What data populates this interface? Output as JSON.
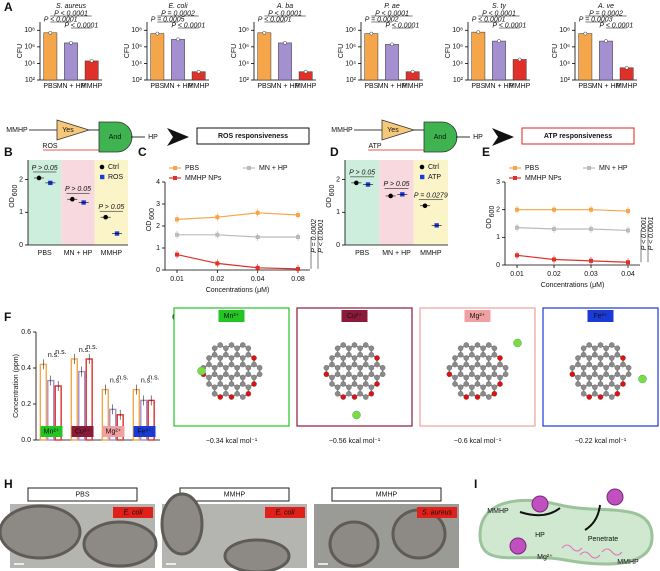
{
  "panel_labels": [
    "A",
    "B",
    "C",
    "D",
    "E",
    "F",
    "G",
    "H",
    "I"
  ],
  "chart_data": [
    {
      "type": "bar",
      "title": "S. aureus",
      "ylabel": "CFU",
      "categories": [
        "PBS",
        "MN + HP",
        "MMHP"
      ],
      "values": [
        50000000,
        3000000,
        20000
      ],
      "colors": [
        "#f5a64a",
        "#a48fd0",
        "#e0302a"
      ],
      "log_scale": true,
      "ylim": [
        100,
        1000000000
      ],
      "yticks": [
        {
          "value": 100,
          "label": "10²"
        },
        {
          "value": 10000,
          "label": "10⁴"
        },
        {
          "value": 1000000,
          "label": "10⁶"
        },
        {
          "value": 100000000,
          "label": "10⁸"
        }
      ],
      "annotations": [
        "P < 0.0001",
        "P < 0.0001",
        "P < 0.0001"
      ]
    },
    {
      "type": "bar",
      "title": "E. coli",
      "ylabel": "CFU",
      "categories": [
        "PBS",
        "MN + HP",
        "MMHP"
      ],
      "values": [
        40000000,
        8000000,
        1000
      ],
      "colors": [
        "#f5a64a",
        "#a48fd0",
        "#e0302a"
      ],
      "log_scale": true,
      "ylim": [
        100,
        1000000000
      ],
      "yticks": [
        {
          "value": 100,
          "label": "10²"
        },
        {
          "value": 10000,
          "label": "10⁴"
        },
        {
          "value": 1000000,
          "label": "10⁶"
        },
        {
          "value": 100000000,
          "label": "10⁸"
        }
      ],
      "annotations": [
        "P = 0.0002",
        "P = 0.0005",
        "P < 0.0001"
      ]
    },
    {
      "type": "bar",
      "title": "A. ba",
      "ylabel": "CFU",
      "categories": [
        "PBS",
        "MN + HP",
        "MMHP"
      ],
      "values": [
        50000000,
        3000000,
        1000
      ],
      "colors": [
        "#f5a64a",
        "#a48fd0",
        "#e0302a"
      ],
      "log_scale": true,
      "ylim": [
        100,
        1000000000
      ],
      "yticks": [
        {
          "value": 100,
          "label": "10²"
        },
        {
          "value": 10000,
          "label": "10⁴"
        },
        {
          "value": 1000000,
          "label": "10⁶"
        },
        {
          "value": 100000000,
          "label": "10⁸"
        }
      ],
      "annotations": [
        "P < 0.0001",
        "P < 0.0001"
      ]
    },
    {
      "type": "bar",
      "title": "P. ae",
      "ylabel": "CFU",
      "categories": [
        "PBS",
        "MN + HP",
        "MMHP"
      ],
      "values": [
        40000000,
        2000000,
        1000
      ],
      "colors": [
        "#f5a64a",
        "#a48fd0",
        "#e0302a"
      ],
      "log_scale": true,
      "ylim": [
        100,
        1000000000
      ],
      "yticks": [
        {
          "value": 100,
          "label": "10²"
        },
        {
          "value": 10000,
          "label": "10⁴"
        },
        {
          "value": 1000000,
          "label": "10⁶"
        },
        {
          "value": 100000000,
          "label": "10⁸"
        }
      ],
      "annotations": [
        "P < 0.0001",
        "P = 0.0002",
        "P < 0.0001"
      ]
    },
    {
      "type": "bar",
      "title": "S. ty",
      "ylabel": "CFU",
      "categories": [
        "PBS",
        "MN + HP",
        "MMHP"
      ],
      "values": [
        60000000,
        5000000,
        30000
      ],
      "colors": [
        "#f5a64a",
        "#a48fd0",
        "#e0302a"
      ],
      "log_scale": true,
      "ylim": [
        100,
        1000000000
      ],
      "yticks": [
        {
          "value": 100,
          "label": "10²"
        },
        {
          "value": 10000,
          "label": "10⁴"
        },
        {
          "value": 1000000,
          "label": "10⁶"
        },
        {
          "value": 100000000,
          "label": "10⁸"
        }
      ],
      "annotations": [
        "P < 0.0001",
        "P < 0.0001",
        "P < 0.0001"
      ]
    },
    {
      "type": "bar",
      "title": "A. ve",
      "ylabel": "CFU",
      "categories": [
        "PBS",
        "MN + HP",
        "MMHP"
      ],
      "values": [
        40000000,
        5000000,
        3000
      ],
      "colors": [
        "#f5a64a",
        "#a48fd0",
        "#e0302a"
      ],
      "log_scale": true,
      "ylim": [
        100,
        1000000000
      ],
      "yticks": [
        {
          "value": 100,
          "label": "10²"
        },
        {
          "value": 10000,
          "label": "10⁴"
        },
        {
          "value": 1000000,
          "label": "10⁶"
        },
        {
          "value": 100000000,
          "label": "10⁸"
        }
      ],
      "annotations": [
        "P = 0.0002",
        "P = 0.0003",
        "P < 0.0001"
      ]
    },
    {
      "type": "dot",
      "ylabel": "OD",
      "ylabel_sub": "600",
      "categories": [
        "PBS",
        "MN + HP",
        "MMHP"
      ],
      "bands": [
        "#cdeedd",
        "#f7d9df",
        "#fbf4c9"
      ],
      "series": [
        {
          "name": "Ctrl",
          "color": "#000000",
          "values": [
            2.05,
            1.4,
            0.85
          ]
        },
        {
          "name": "ROS",
          "color": "#1f3bd6",
          "values": [
            1.9,
            1.3,
            0.35
          ]
        }
      ],
      "ylim": [
        0,
        2.6
      ],
      "yticks": [
        0,
        1,
        2
      ],
      "annotations": [
        "P > 0.05",
        "P > 0.05",
        "P > 0.05"
      ]
    },
    {
      "type": "line",
      "ylabel": "OD",
      "ylabel_sub": "600",
      "xlabel": "Concentrations (μM)",
      "categories": [
        "0.01",
        "0.02",
        "0.04",
        "0.08"
      ],
      "series": [
        {
          "name": "PBS",
          "color": "#f5a64a",
          "values": [
            2.3,
            2.4,
            2.6,
            2.5
          ]
        },
        {
          "name": "MN + HP",
          "color": "#bbbbbb",
          "values": [
            1.6,
            1.6,
            1.5,
            1.5
          ]
        },
        {
          "name": "MMHP NPs",
          "color": "#e0302a",
          "values": [
            0.7,
            0.3,
            0.1,
            0.05
          ]
        }
      ],
      "ylim": [
        0,
        4
      ],
      "yticks": [
        0,
        1,
        2,
        3,
        4
      ],
      "annotations": [
        "P = 0.0002",
        "P < 0.0001"
      ]
    },
    {
      "type": "dot",
      "ylabel": "OD",
      "ylabel_sub": "600",
      "categories": [
        "PBS",
        "MN + HP",
        "MMHP"
      ],
      "bands": [
        "#cdeedd",
        "#f7d9df",
        "#fbf4c9"
      ],
      "series": [
        {
          "name": "Ctrl",
          "color": "#000000",
          "values": [
            1.9,
            1.5,
            1.2
          ]
        },
        {
          "name": "ATP",
          "color": "#1f3bd6",
          "values": [
            1.85,
            1.55,
            0.6
          ]
        }
      ],
      "ylim": [
        0,
        2.6
      ],
      "yticks": [
        0,
        1,
        2
      ],
      "annotations": [
        "P > 0.05",
        "P > 0.05",
        "P = 0.0279"
      ]
    },
    {
      "type": "line",
      "ylabel": "OD",
      "ylabel_sub": "600",
      "xlabel": "Concentrations (μM)",
      "categories": [
        "0.01",
        "0.02",
        "0.03",
        "0.04"
      ],
      "series": [
        {
          "name": "PBS",
          "color": "#f5a64a",
          "values": [
            2.0,
            2.0,
            2.0,
            1.95
          ]
        },
        {
          "name": "MN + HP",
          "color": "#bbbbbb",
          "values": [
            1.35,
            1.3,
            1.3,
            1.25
          ]
        },
        {
          "name": "MMHP NPs",
          "color": "#e0302a",
          "values": [
            0.35,
            0.2,
            0.15,
            0.1
          ]
        }
      ],
      "ylim": [
        0,
        3
      ],
      "yticks": [
        0,
        1,
        2,
        3
      ],
      "annotations": [
        "P < 0.0001",
        "P < 0.0001"
      ]
    },
    {
      "type": "grouped_bar",
      "ylabel": "Concentration (ppm)",
      "categories": [
        "Mn²⁺",
        "Cu²⁺",
        "Mg²⁺",
        "Fe³⁺"
      ],
      "category_colors": [
        "#22c522",
        "#8b1a3a",
        "#f0a0a0",
        "#1a3ad6"
      ],
      "series": [
        {
          "color": "#f5a64a",
          "values": [
            0.42,
            0.45,
            0.28,
            0.28
          ]
        },
        {
          "color": "#a48fd0",
          "values": [
            0.33,
            0.38,
            0.17,
            0.22
          ]
        },
        {
          "color": "#e0302a",
          "values": [
            0.3,
            0.45,
            0.14,
            0.22
          ]
        }
      ],
      "ylim": [
        0,
        0.6
      ],
      "yticks": [
        {
          "value": 0,
          "label": "0.0"
        },
        0.2,
        0.4,
        0.6
      ],
      "annotations": [
        "n.s.",
        "n.s.",
        "n.s.",
        "n.s.",
        "n.s.",
        "n.s.",
        "n.s.",
        "n.s."
      ]
    }
  ],
  "diagrams": [
    {
      "input": "MMHP",
      "gate1": "Yes",
      "signal": "ROS",
      "gate2": "And",
      "output": "HP",
      "result": "ROS responsiveness"
    },
    {
      "input": "MMHP",
      "gate1": "Yes",
      "signal": "ATP",
      "gate2": "And",
      "output": "HP",
      "result": "ATP responsiveness"
    }
  ],
  "molecules": [
    {
      "ion": "Mn²⁺",
      "color": "#22c522",
      "energy": "−0.34 kcal mol⁻¹"
    },
    {
      "ion": "Cu²⁺",
      "color": "#8b1a3a",
      "energy": "−0.56 kcal mol⁻¹"
    },
    {
      "ion": "Mg²⁺",
      "color": "#f0a0a0",
      "energy": "−0.6 kcal mol⁻¹"
    },
    {
      "ion": "Fe³⁺",
      "color": "#1a3ad6",
      "energy": "−0.22 kcal mol⁻¹"
    }
  ],
  "micrographs": [
    {
      "title": "PBS",
      "organism": "E. coli"
    },
    {
      "title": "MMHP",
      "organism": "E. coli"
    },
    {
      "title": "MMHP",
      "organism": "S. aureus"
    }
  ],
  "schematic": {
    "label": "MMHP",
    "penetrate": "Penetrate",
    "hp": "HP",
    "ion": "Mg²⁺",
    "inside": "MMHP"
  }
}
